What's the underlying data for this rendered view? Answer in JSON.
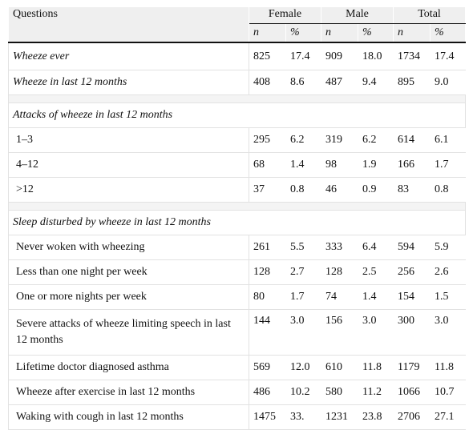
{
  "header": {
    "questions": "Questions",
    "groups": [
      "Female",
      "Male",
      "Total"
    ],
    "sub": [
      "n",
      "%",
      "n",
      "%",
      "n",
      "%"
    ]
  },
  "rows": [
    {
      "label": "Wheeze ever",
      "values": [
        "825",
        "17.4",
        "909",
        "18.0",
        "1734",
        "17.4"
      ]
    },
    {
      "label": "Wheeze in last 12 months",
      "values": [
        "408",
        "8.6",
        "487",
        "9.4",
        "895",
        "9.0"
      ]
    },
    {
      "label": "1–3",
      "values": [
        "295",
        "6.2",
        "319",
        "6.2",
        "614",
        "6.1"
      ]
    },
    {
      "label": "4–12",
      "values": [
        "68",
        "1.4",
        "98",
        "1.9",
        "166",
        "1.7"
      ]
    },
    {
      "label": ">12",
      "values": [
        "37",
        "0.8",
        "46",
        "0.9",
        "83",
        "0.8"
      ]
    },
    {
      "label": "Never woken with wheezing",
      "values": [
        "261",
        "5.5",
        "333",
        "6.4",
        "594",
        "5.9"
      ]
    },
    {
      "label": "Less than one night per week",
      "values": [
        "128",
        "2.7",
        "128",
        "2.5",
        "256",
        "2.6"
      ]
    },
    {
      "label": "One or more nights per week",
      "values": [
        "80",
        "1.7",
        "74",
        "1.4",
        "154",
        "1.5"
      ]
    },
    {
      "label": "Severe attacks of wheeze limiting speech in last 12 months",
      "values": [
        "144",
        "3.0",
        "156",
        "3.0",
        "300",
        "3.0"
      ]
    },
    {
      "label": "Lifetime doctor diagnosed asthma",
      "values": [
        "569",
        "12.0",
        "610",
        "11.8",
        "1179",
        "11.8"
      ]
    },
    {
      "label": "Wheeze after exercise in last 12 months",
      "values": [
        "486",
        "10.2",
        "580",
        "11.2",
        "1066",
        "10.7"
      ]
    },
    {
      "label": "Waking with cough in last 12 months",
      "values": [
        "1475",
        "33.",
        "1231",
        "23.8",
        "2706",
        "27.1"
      ]
    }
  ],
  "sections": [
    "Attacks of wheeze in last 12 months",
    "Sleep disturbed by wheeze in last 12 months"
  ]
}
